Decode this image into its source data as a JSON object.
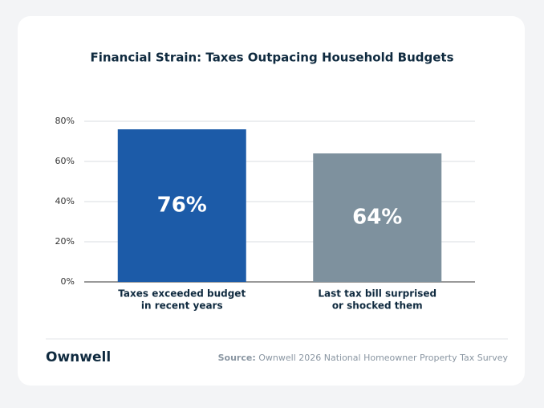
{
  "chart_data": {
    "type": "bar",
    "title": "Financial Strain: Taxes Outpacing Household Budgets",
    "categories": [
      [
        "Taxes exceeded budget",
        "in recent years"
      ],
      [
        "Last tax bill surprised",
        "or shocked them"
      ]
    ],
    "values": [
      76,
      64
    ],
    "value_labels": [
      "76%",
      "64%"
    ],
    "colors": [
      "#1c5ba8",
      "#7e919e"
    ],
    "ylim": [
      0,
      80
    ],
    "yticks": [
      {
        "value": 0,
        "label": "0%"
      },
      {
        "value": 20,
        "label": "20%"
      },
      {
        "value": 40,
        "label": "40%"
      },
      {
        "value": 60,
        "label": "60%"
      },
      {
        "value": 80,
        "label": "80%"
      }
    ],
    "grid": true
  },
  "footer": {
    "brand": "Ownwell",
    "source_label": "Source:",
    "source_text": "Ownwell 2026 National Homeowner Property Tax Survey"
  }
}
